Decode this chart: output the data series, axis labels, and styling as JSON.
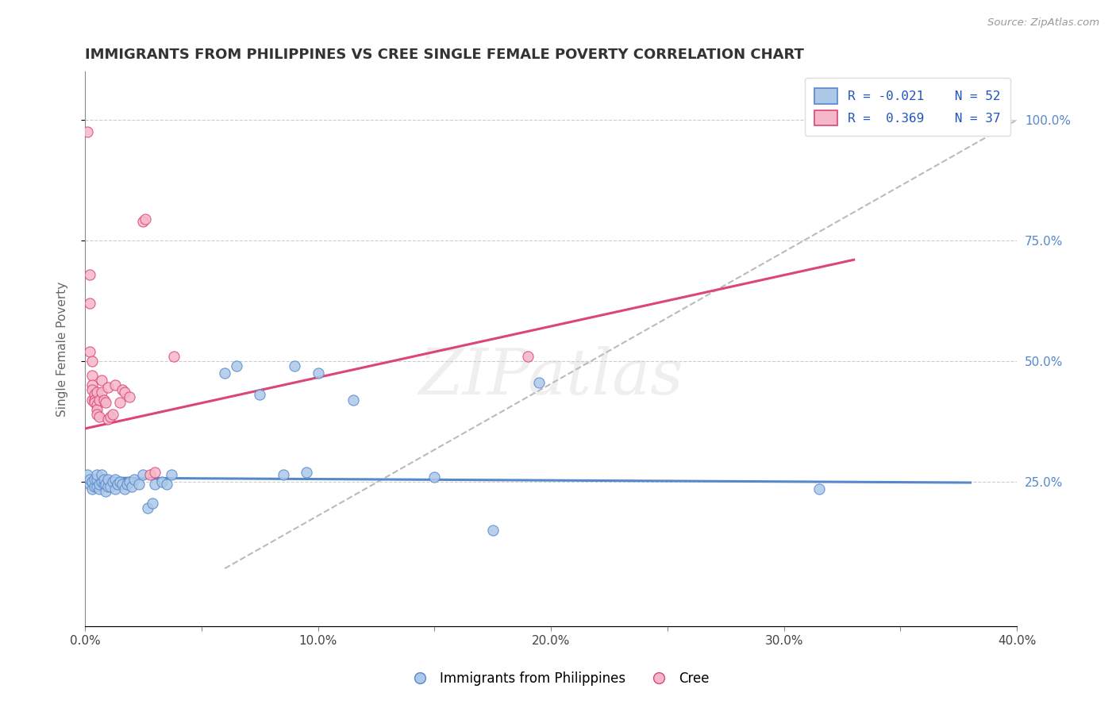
{
  "title": "IMMIGRANTS FROM PHILIPPINES VS CREE SINGLE FEMALE POVERTY CORRELATION CHART",
  "source": "Source: ZipAtlas.com",
  "ylabel": "Single Female Poverty",
  "xlim": [
    0.0,
    0.4
  ],
  "ylim": [
    -0.05,
    1.1
  ],
  "xtick_labels": [
    "0.0%",
    "",
    "10.0%",
    "",
    "20.0%",
    "",
    "30.0%",
    "",
    "40.0%"
  ],
  "xtick_vals": [
    0.0,
    0.05,
    0.1,
    0.15,
    0.2,
    0.25,
    0.3,
    0.35,
    0.4
  ],
  "ytick_vals": [
    0.25,
    0.5,
    0.75,
    1.0
  ],
  "ytick_labels": [
    "25.0%",
    "50.0%",
    "75.0%",
    "100.0%"
  ],
  "legend_r1": "R = -0.021",
  "legend_n1": "N = 52",
  "legend_r2": "R =  0.369",
  "legend_n2": "N = 37",
  "color_blue": "#adc8e8",
  "color_pink": "#f5b8c8",
  "line_blue": "#5588cc",
  "line_pink": "#dd4477",
  "line_dashed": "#bbbbbb",
  "watermark": "ZIPatlas",
  "philippines_scatter": [
    [
      0.001,
      0.265
    ],
    [
      0.002,
      0.245
    ],
    [
      0.002,
      0.255
    ],
    [
      0.003,
      0.235
    ],
    [
      0.003,
      0.25
    ],
    [
      0.004,
      0.24
    ],
    [
      0.004,
      0.255
    ],
    [
      0.005,
      0.24
    ],
    [
      0.005,
      0.255
    ],
    [
      0.005,
      0.265
    ],
    [
      0.006,
      0.235
    ],
    [
      0.006,
      0.245
    ],
    [
      0.007,
      0.25
    ],
    [
      0.007,
      0.265
    ],
    [
      0.008,
      0.245
    ],
    [
      0.008,
      0.255
    ],
    [
      0.009,
      0.23
    ],
    [
      0.009,
      0.245
    ],
    [
      0.01,
      0.24
    ],
    [
      0.01,
      0.255
    ],
    [
      0.011,
      0.24
    ],
    [
      0.012,
      0.25
    ],
    [
      0.013,
      0.235
    ],
    [
      0.013,
      0.255
    ],
    [
      0.014,
      0.245
    ],
    [
      0.015,
      0.25
    ],
    [
      0.016,
      0.245
    ],
    [
      0.017,
      0.235
    ],
    [
      0.018,
      0.245
    ],
    [
      0.019,
      0.25
    ],
    [
      0.02,
      0.24
    ],
    [
      0.021,
      0.255
    ],
    [
      0.023,
      0.245
    ],
    [
      0.025,
      0.265
    ],
    [
      0.027,
      0.195
    ],
    [
      0.029,
      0.205
    ],
    [
      0.03,
      0.245
    ],
    [
      0.033,
      0.25
    ],
    [
      0.035,
      0.245
    ],
    [
      0.037,
      0.265
    ],
    [
      0.06,
      0.475
    ],
    [
      0.065,
      0.49
    ],
    [
      0.075,
      0.43
    ],
    [
      0.085,
      0.265
    ],
    [
      0.09,
      0.49
    ],
    [
      0.095,
      0.27
    ],
    [
      0.1,
      0.475
    ],
    [
      0.115,
      0.42
    ],
    [
      0.15,
      0.26
    ],
    [
      0.175,
      0.15
    ],
    [
      0.195,
      0.455
    ],
    [
      0.315,
      0.235
    ]
  ],
  "cree_scatter": [
    [
      0.001,
      0.975
    ],
    [
      0.002,
      0.68
    ],
    [
      0.002,
      0.62
    ],
    [
      0.002,
      0.52
    ],
    [
      0.003,
      0.5
    ],
    [
      0.003,
      0.47
    ],
    [
      0.003,
      0.45
    ],
    [
      0.003,
      0.44
    ],
    [
      0.003,
      0.42
    ],
    [
      0.004,
      0.43
    ],
    [
      0.004,
      0.42
    ],
    [
      0.004,
      0.415
    ],
    [
      0.005,
      0.435
    ],
    [
      0.005,
      0.41
    ],
    [
      0.005,
      0.4
    ],
    [
      0.005,
      0.39
    ],
    [
      0.006,
      0.42
    ],
    [
      0.006,
      0.385
    ],
    [
      0.007,
      0.46
    ],
    [
      0.007,
      0.435
    ],
    [
      0.008,
      0.42
    ],
    [
      0.009,
      0.415
    ],
    [
      0.01,
      0.445
    ],
    [
      0.01,
      0.38
    ],
    [
      0.011,
      0.385
    ],
    [
      0.012,
      0.39
    ],
    [
      0.013,
      0.45
    ],
    [
      0.015,
      0.415
    ],
    [
      0.016,
      0.44
    ],
    [
      0.017,
      0.435
    ],
    [
      0.019,
      0.425
    ],
    [
      0.025,
      0.79
    ],
    [
      0.026,
      0.795
    ],
    [
      0.028,
      0.265
    ],
    [
      0.03,
      0.27
    ],
    [
      0.038,
      0.51
    ],
    [
      0.19,
      0.51
    ]
  ],
  "philippines_trendline": [
    [
      0.0,
      0.258
    ],
    [
      0.38,
      0.248
    ]
  ],
  "cree_trendline": [
    [
      0.0,
      0.36
    ],
    [
      0.33,
      0.71
    ]
  ],
  "dashed_trendline": [
    [
      0.06,
      0.07
    ],
    [
      0.4,
      1.0
    ]
  ]
}
